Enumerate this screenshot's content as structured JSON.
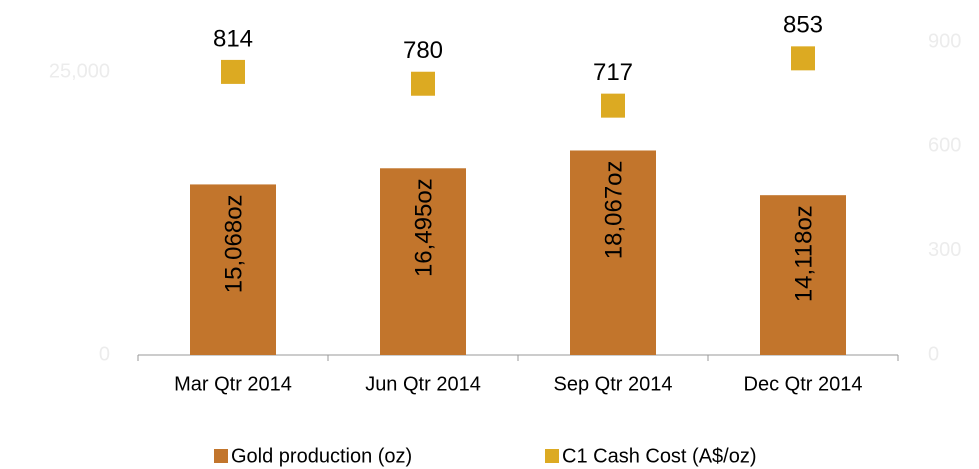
{
  "chart_data": {
    "type": "bar",
    "categories": [
      "Mar Qtr 2014",
      "Jun Qtr 2014",
      "Sep Qtr 2014",
      "Dec Qtr 2014"
    ],
    "series": [
      {
        "name": "Gold production (oz)",
        "type": "bar",
        "color": "#c2752c",
        "values": [
          15068,
          16495,
          18067,
          14118
        ],
        "value_labels": [
          "15,068oz",
          "16,495oz",
          "18,067oz",
          "14,118oz"
        ]
      },
      {
        "name": "C1 Cash Cost (A$/oz)",
        "type": "scatter",
        "axis": "y2",
        "color": "#dcaa22",
        "values": [
          814,
          780,
          717,
          853
        ]
      }
    ],
    "ylim": [
      0,
      27650
    ],
    "yticks": [
      0,
      {
        "value": 25000,
        "label": "25,000"
      }
    ],
    "y2lim": [
      0,
      900
    ],
    "y2ticks": [
      0,
      300,
      600,
      900
    ],
    "legend": "bottom"
  }
}
